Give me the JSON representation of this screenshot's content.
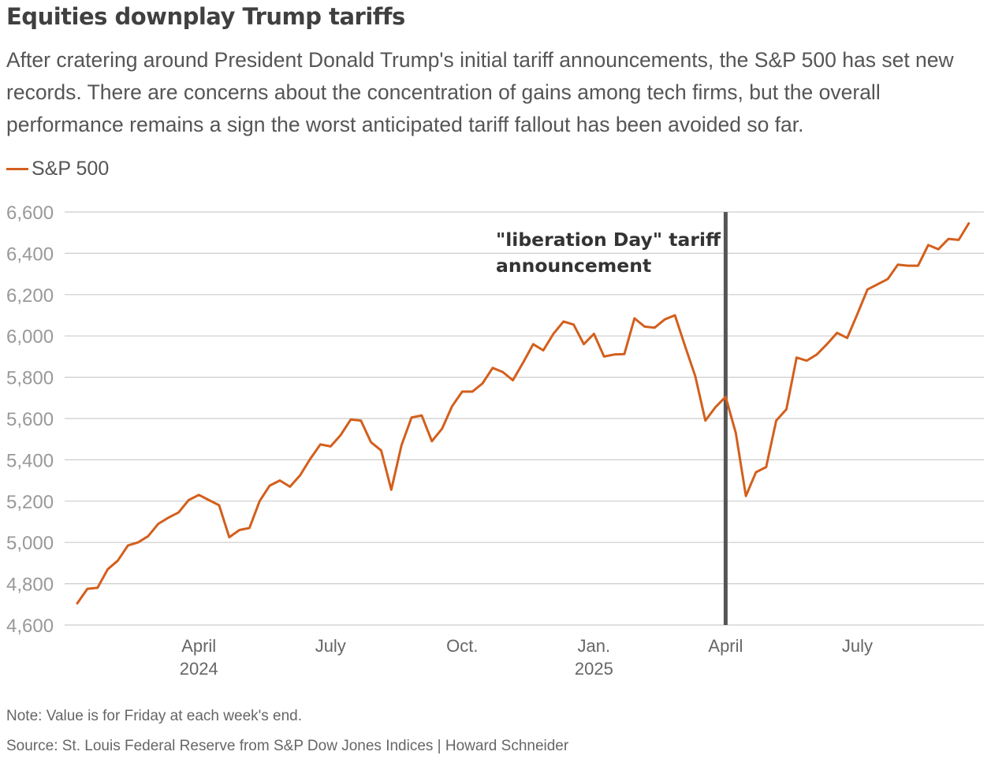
{
  "header": {
    "title": "Equities downplay Trump tariffs",
    "subtitle": "After cratering around President Donald Trump's initial tariff announcements, the S&P 500 has set new records. There are concerns about the concentration of gains among tech firms, but the overall performance remains a sign the worst anticipated tariff fallout has been avoided so far."
  },
  "legend": {
    "label": "S&P 500",
    "color": "#d35f1c"
  },
  "annotation": {
    "line1": "\"liberation Day\" tariff",
    "line2": "announcement",
    "date_index": 64
  },
  "colors": {
    "line": "#d35f1c",
    "grid": "#cccccc",
    "marker": "#555555",
    "tick_text": "#999999",
    "axis_text": "#666666"
  },
  "chart_data": {
    "type": "line",
    "title": "Equities downplay Trump tariffs",
    "xlabel": "",
    "ylabel": "",
    "ylim": [
      4600,
      6600
    ],
    "yticks": [
      4600,
      4800,
      5000,
      5200,
      5400,
      5600,
      5800,
      6000,
      6200,
      6400,
      6600
    ],
    "x_ticks": [
      {
        "index": 12,
        "line1": "April",
        "line2": "2024"
      },
      {
        "index": 25,
        "line1": "July",
        "line2": ""
      },
      {
        "index": 38,
        "line1": "Oct.",
        "line2": ""
      },
      {
        "index": 51,
        "line1": "Jan.",
        "line2": "2025"
      },
      {
        "index": 64,
        "line1": "April",
        "line2": ""
      },
      {
        "index": 77,
        "line1": "July",
        "line2": ""
      }
    ],
    "series": [
      {
        "name": "S&P 500",
        "frequency": "weekly (Friday close)",
        "values": [
          4705,
          4775,
          4780,
          4870,
          4912,
          4985,
          5000,
          5030,
          5090,
          5120,
          5145,
          5205,
          5230,
          5205,
          5180,
          5025,
          5060,
          5070,
          5200,
          5275,
          5300,
          5270,
          5325,
          5405,
          5475,
          5465,
          5520,
          5595,
          5590,
          5485,
          5445,
          5255,
          5470,
          5605,
          5615,
          5490,
          5550,
          5660,
          5730,
          5730,
          5770,
          5845,
          5825,
          5785,
          5870,
          5960,
          5930,
          6010,
          6070,
          6055,
          5960,
          6010,
          5900,
          5910,
          5912,
          6085,
          6045,
          6040,
          6080,
          6100,
          5950,
          5805,
          5590,
          5655,
          5705,
          5530,
          5225,
          5340,
          5365,
          5590,
          5645,
          5895,
          5880,
          5910,
          5960,
          6015,
          5990,
          6105,
          6225,
          6250,
          6275,
          6345,
          6340,
          6340,
          6440,
          6420,
          6470,
          6465,
          6545
        ]
      }
    ]
  },
  "footer": {
    "note": "Note: Value is for Friday at each week's end.",
    "source": "Source: St. Louis Federal Reserve from S&P Dow Jones Indices | Howard Schneider"
  }
}
